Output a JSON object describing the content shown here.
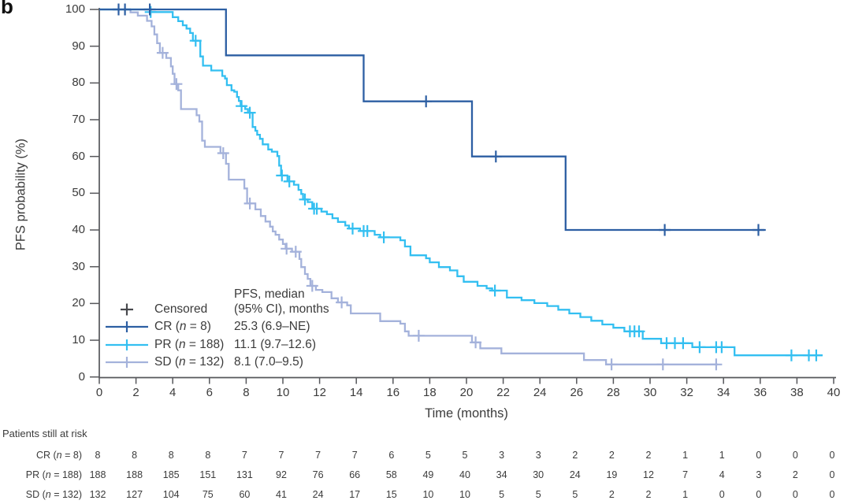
{
  "panel_label": "b",
  "axes": {
    "x_label": "Time (months)",
    "y_label": "PFS probability (%)",
    "x_ticks": [
      0,
      2,
      4,
      6,
      8,
      10,
      12,
      14,
      16,
      18,
      20,
      22,
      24,
      26,
      28,
      30,
      32,
      34,
      36,
      38,
      40
    ],
    "y_ticks": [
      0,
      10,
      20,
      30,
      40,
      50,
      60,
      70,
      80,
      90,
      100
    ]
  },
  "legend": {
    "censored_label": "Censored",
    "censored_marker_icon": "plus-icon",
    "censored_color": "#47484c",
    "median_header_line1": "PFS, median",
    "median_header_line2": "(95% CI), months",
    "entries": [
      {
        "label_pre": "CR (",
        "n_word": "n",
        "label_post": " = 8)",
        "median": "25.3 (6.9–NE)"
      },
      {
        "label_pre": "PR (",
        "n_word": "n",
        "label_post": " = 188)",
        "median": "11.1 (9.7–12.6)"
      },
      {
        "label_pre": "SD (",
        "n_word": "n",
        "label_post": " = 132)",
        "median": "8.1 (7.0–9.5)"
      }
    ]
  },
  "chart_data": {
    "type": "line",
    "subtype": "kaplan-meier",
    "xlabel": "Time (months)",
    "ylabel": "PFS probability (%)",
    "xlim": [
      0,
      40
    ],
    "ylim": [
      0,
      100
    ],
    "grid": false,
    "legend_position": "lower-left",
    "series": [
      {
        "key": "CR",
        "n": 8,
        "color": "#2d5fa3",
        "median_months": 25.3,
        "ci_95": "6.9–NE",
        "steps": [
          [
            0,
            100
          ],
          [
            6.9,
            87.5
          ],
          [
            14.4,
            75.0
          ],
          [
            20.3,
            60.0
          ],
          [
            25.4,
            40.0
          ]
        ],
        "end": 36.3,
        "censors": [
          [
            1.05,
            100
          ],
          [
            1.4,
            100
          ],
          [
            2.75,
            100
          ],
          [
            17.8,
            75.0
          ],
          [
            21.6,
            60.0
          ],
          [
            30.8,
            40.0
          ],
          [
            35.9,
            40.0
          ]
        ]
      },
      {
        "key": "PR",
        "n": 188,
        "color": "#33bff1",
        "median_months": 11.1,
        "ci_95": "9.7–12.6",
        "steps": [
          [
            0,
            100
          ],
          [
            2.8,
            99.3
          ],
          [
            4.0,
            97.9
          ],
          [
            4.3,
            96.8
          ],
          [
            4.55,
            95.7
          ],
          [
            4.75,
            94.8
          ],
          [
            4.95,
            93.6
          ],
          [
            5.1,
            91.5
          ],
          [
            5.5,
            87.2
          ],
          [
            5.65,
            84.7
          ],
          [
            6.1,
            83.4
          ],
          [
            6.7,
            81.9
          ],
          [
            6.85,
            81.2
          ],
          [
            6.95,
            79.4
          ],
          [
            7.2,
            78.0
          ],
          [
            7.35,
            77.6
          ],
          [
            7.5,
            76.2
          ],
          [
            7.6,
            75.1
          ],
          [
            7.7,
            73.7
          ],
          [
            7.95,
            72.9
          ],
          [
            8.1,
            71.9
          ],
          [
            8.35,
            68.0
          ],
          [
            8.5,
            67.0
          ],
          [
            8.6,
            65.9
          ],
          [
            8.75,
            64.8
          ],
          [
            8.9,
            63.3
          ],
          [
            9.2,
            61.9
          ],
          [
            9.4,
            61.3
          ],
          [
            9.7,
            60.1
          ],
          [
            9.8,
            57.5
          ],
          [
            9.9,
            54.8
          ],
          [
            10.25,
            53.2
          ],
          [
            10.6,
            52.3
          ],
          [
            10.85,
            50.9
          ],
          [
            11.0,
            49.8
          ],
          [
            11.1,
            48.3
          ],
          [
            11.35,
            47.6
          ],
          [
            11.6,
            45.8
          ],
          [
            12.1,
            45.0
          ],
          [
            12.4,
            44.3
          ],
          [
            12.7,
            43.2
          ],
          [
            13.0,
            42.2
          ],
          [
            13.4,
            41.2
          ],
          [
            13.6,
            40.4
          ],
          [
            14.2,
            39.7
          ],
          [
            15.0,
            38.7
          ],
          [
            15.3,
            38.0
          ],
          [
            16.4,
            37.2
          ],
          [
            16.65,
            35.5
          ],
          [
            16.95,
            33.1
          ],
          [
            17.8,
            32.3
          ],
          [
            18.0,
            31.2
          ],
          [
            18.5,
            29.9
          ],
          [
            19.1,
            29.0
          ],
          [
            19.5,
            27.4
          ],
          [
            19.85,
            25.9
          ],
          [
            20.6,
            24.8
          ],
          [
            21.1,
            24.1
          ],
          [
            21.4,
            23.5
          ],
          [
            22.2,
            21.6
          ],
          [
            23.0,
            20.9
          ],
          [
            23.7,
            20.1
          ],
          [
            24.4,
            19.3
          ],
          [
            25.0,
            18.3
          ],
          [
            25.6,
            17.3
          ],
          [
            26.2,
            16.3
          ],
          [
            26.8,
            15.3
          ],
          [
            27.4,
            14.3
          ],
          [
            28.0,
            13.4
          ],
          [
            28.6,
            12.4
          ],
          [
            29.6,
            10.4
          ],
          [
            30.6,
            9.2
          ],
          [
            32.3,
            8.1
          ],
          [
            34.6,
            5.9
          ]
        ],
        "end": 39.4,
        "censors": [
          [
            2.8,
            99.3
          ],
          [
            5.25,
            91.5
          ],
          [
            7.75,
            73.7
          ],
          [
            8.2,
            71.9
          ],
          [
            9.95,
            54.8
          ],
          [
            10.35,
            53.2
          ],
          [
            11.2,
            48.3
          ],
          [
            11.7,
            45.8
          ],
          [
            11.85,
            45.8
          ],
          [
            13.8,
            40.4
          ],
          [
            14.4,
            39.7
          ],
          [
            14.6,
            39.7
          ],
          [
            15.5,
            38.0
          ],
          [
            21.55,
            23.5
          ],
          [
            28.9,
            12.4
          ],
          [
            29.15,
            12.4
          ],
          [
            29.4,
            12.4
          ],
          [
            30.9,
            9.2
          ],
          [
            31.35,
            9.2
          ],
          [
            31.8,
            9.2
          ],
          [
            32.7,
            8.1
          ],
          [
            33.6,
            8.1
          ],
          [
            33.9,
            8.1
          ],
          [
            37.7,
            5.9
          ],
          [
            38.65,
            5.9
          ],
          [
            39.05,
            5.9
          ]
        ]
      },
      {
        "key": "SD",
        "n": 132,
        "color": "#a4b2db",
        "median_months": 8.1,
        "ci_95": "7.0–9.5",
        "steps": [
          [
            0,
            100
          ],
          [
            1.7,
            99.2
          ],
          [
            2.1,
            98.3
          ],
          [
            2.6,
            96.9
          ],
          [
            2.85,
            95.4
          ],
          [
            3.0,
            93.2
          ],
          [
            3.15,
            90.8
          ],
          [
            3.3,
            88.2
          ],
          [
            3.65,
            86.8
          ],
          [
            3.9,
            84.5
          ],
          [
            4.0,
            82.5
          ],
          [
            4.1,
            79.7
          ],
          [
            4.3,
            78.0
          ],
          [
            4.45,
            72.9
          ],
          [
            5.3,
            71.2
          ],
          [
            5.45,
            69.5
          ],
          [
            5.6,
            64.3
          ],
          [
            5.75,
            62.6
          ],
          [
            6.6,
            60.9
          ],
          [
            6.9,
            58.0
          ],
          [
            7.05,
            53.7
          ],
          [
            7.9,
            51.3
          ],
          [
            8.05,
            47.2
          ],
          [
            8.5,
            45.6
          ],
          [
            8.8,
            43.8
          ],
          [
            9.05,
            42.3
          ],
          [
            9.3,
            40.9
          ],
          [
            9.45,
            39.6
          ],
          [
            9.6,
            38.7
          ],
          [
            9.8,
            37.4
          ],
          [
            10.0,
            36.2
          ],
          [
            10.15,
            34.9
          ],
          [
            10.5,
            34.1
          ],
          [
            10.9,
            32.1
          ],
          [
            11.0,
            29.9
          ],
          [
            11.2,
            28.0
          ],
          [
            11.35,
            26.7
          ],
          [
            11.5,
            24.8
          ],
          [
            11.8,
            23.7
          ],
          [
            12.15,
            23.1
          ],
          [
            12.65,
            21.4
          ],
          [
            13.0,
            20.3
          ],
          [
            13.5,
            19.5
          ],
          [
            13.7,
            17.3
          ],
          [
            15.3,
            15.2
          ],
          [
            16.4,
            14.5
          ],
          [
            16.65,
            12.4
          ],
          [
            16.85,
            11.2
          ],
          [
            20.3,
            9.4
          ],
          [
            20.75,
            7.8
          ],
          [
            21.9,
            6.4
          ],
          [
            26.4,
            4.6
          ],
          [
            27.6,
            3.4
          ]
        ],
        "end": 33.7,
        "censors": [
          [
            3.45,
            88.2
          ],
          [
            4.2,
            79.7
          ],
          [
            6.75,
            60.9
          ],
          [
            8.2,
            47.2
          ],
          [
            10.2,
            34.9
          ],
          [
            10.7,
            34.1
          ],
          [
            11.6,
            24.8
          ],
          [
            13.2,
            20.3
          ],
          [
            17.4,
            11.2
          ],
          [
            20.5,
            9.4
          ],
          [
            27.9,
            3.4
          ],
          [
            30.7,
            3.4
          ],
          [
            33.6,
            3.4
          ]
        ]
      }
    ]
  },
  "risk_table": {
    "title": "Patients still at risk",
    "times": [
      0,
      2,
      4,
      6,
      8,
      10,
      12,
      14,
      16,
      18,
      20,
      22,
      24,
      26,
      28,
      30,
      32,
      34,
      36,
      38,
      40
    ],
    "rows": [
      {
        "label_pre": "CR (",
        "n_word": "n",
        "label_post": " = 8)",
        "values": [
          8,
          8,
          8,
          8,
          7,
          7,
          7,
          7,
          6,
          5,
          5,
          3,
          3,
          2,
          2,
          2,
          1,
          1,
          0,
          0,
          0
        ]
      },
      {
        "label_pre": "PR (",
        "n_word": "n",
        "label_post": " = 188)",
        "values": [
          188,
          188,
          185,
          151,
          131,
          92,
          76,
          66,
          58,
          49,
          40,
          34,
          30,
          24,
          19,
          12,
          7,
          4,
          3,
          2,
          0
        ]
      },
      {
        "label_pre": "SD (",
        "n_word": "n",
        "label_post": " = 132)",
        "values": [
          132,
          127,
          104,
          75,
          60,
          41,
          24,
          17,
          15,
          10,
          10,
          5,
          5,
          5,
          2,
          2,
          1,
          0,
          0,
          0,
          0
        ]
      }
    ]
  },
  "colors": {
    "axis": "#56575b",
    "text": "#3b3b3b",
    "cr": "#2d5fa3",
    "pr": "#33bff1",
    "sd": "#a4b2db"
  }
}
